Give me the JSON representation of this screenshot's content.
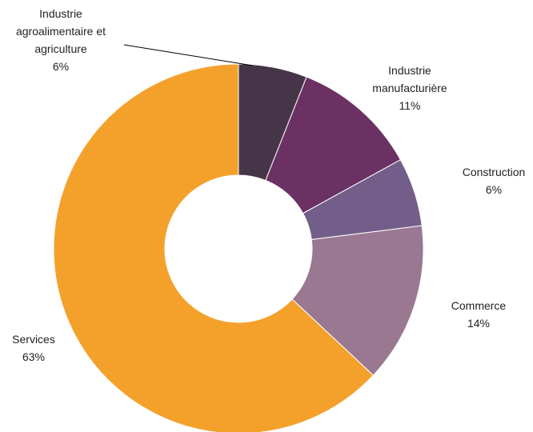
{
  "chart_data": {
    "type": "pie",
    "style": "donut",
    "title": "",
    "legend": "none",
    "series": [
      {
        "label_lines": [
          "Industrie",
          "agroalimentaire et",
          "agriculture"
        ],
        "percent_label": "6%",
        "value": 6,
        "color": "#463548"
      },
      {
        "label_lines": [
          "Industrie",
          "manufacturière"
        ],
        "percent_label": "11%",
        "value": 11,
        "color": "#6b3162"
      },
      {
        "label_lines": [
          "Construction"
        ],
        "percent_label": "6%",
        "value": 6,
        "color": "#735e8a"
      },
      {
        "label_lines": [
          "Commerce"
        ],
        "percent_label": "14%",
        "value": 14,
        "color": "#9a7891"
      },
      {
        "label_lines": [
          "Services"
        ],
        "percent_label": "63%",
        "value": 63,
        "color": "#f4a12c"
      }
    ]
  }
}
